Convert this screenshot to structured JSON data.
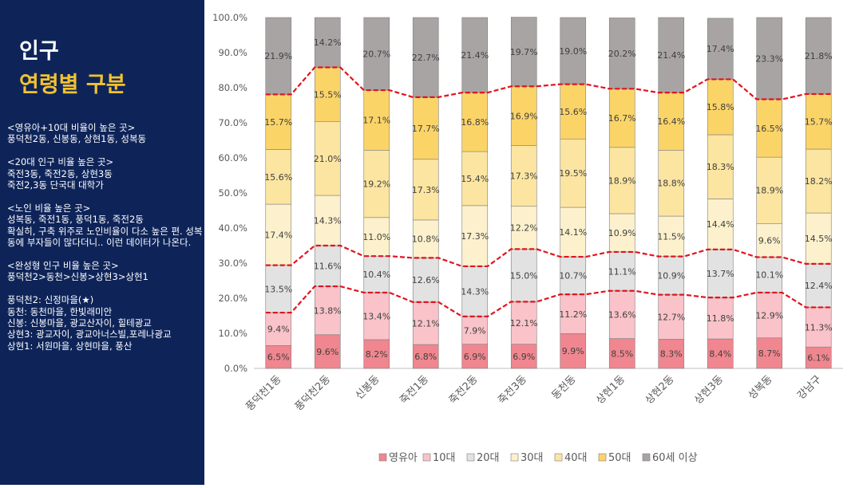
{
  "sidebar": {
    "title_line1": "인구",
    "title_line2": "연령별 구분",
    "notes": "<영유아+10대 비율이 높은 곳>\n풍덕천2동, 신봉동, 상현1동, 성복동\n\n<20대 인구 비율 높은 곳>\n죽전3동, 죽전2동, 상현3동\n죽전2,3동 단국대 대학가\n\n<노인 비율 높은 곳>\n성복동, 죽전1동, 풍덕1동, 죽전2동\n확실히, 구축 위주로 노인비율이 다소 높은 편. 성복동에 부자들이 많다더니.. 이런 데이터가 나온다.\n\n<완성형 인구 비율 높은 곳>\n풍덕천2>동천>신봉>상현3>상현1\n\n풍덕천2: 신정마을(★)\n동천: 동천마을, 한빛래미안\n신봉: 신봉마을, 광교산자이, 힐테광교\n상현3: 광교자이, 광교아너스빌,포레나광교\n상현1: 서원마을, 상현마을, 풍산"
  },
  "chart_data": {
    "type": "bar",
    "stacked": true,
    "normalized": true,
    "categories": [
      "풍덕천1동",
      "풍덕천2동",
      "신봉동",
      "죽전1동",
      "죽전2동",
      "죽전3동",
      "동천동",
      "상현1동",
      "상현2동",
      "상현3동",
      "성복동",
      "강남구"
    ],
    "series": [
      {
        "name": "영유아",
        "color": "#f0868f",
        "values": [
          6.5,
          9.6,
          8.2,
          6.8,
          6.9,
          6.9,
          9.9,
          8.5,
          8.3,
          8.4,
          8.7,
          6.1
        ]
      },
      {
        "name": "10대",
        "color": "#f9c3c9",
        "values": [
          9.4,
          13.8,
          13.4,
          12.1,
          7.9,
          12.1,
          11.2,
          13.6,
          12.7,
          11.8,
          12.9,
          11.3
        ]
      },
      {
        "name": "20대",
        "color": "#e2e2e2",
        "values": [
          13.5,
          11.6,
          10.4,
          12.6,
          14.3,
          15.0,
          10.7,
          11.1,
          10.9,
          13.7,
          10.1,
          12.4
        ]
      },
      {
        "name": "30대",
        "color": "#fcf1cc",
        "values": [
          17.4,
          14.3,
          11.0,
          10.8,
          17.3,
          12.2,
          14.1,
          10.9,
          11.5,
          14.4,
          9.6,
          14.5
        ]
      },
      {
        "name": "40대",
        "color": "#fbe5a1",
        "values": [
          15.6,
          21.0,
          19.2,
          17.3,
          15.4,
          17.3,
          19.5,
          18.9,
          18.8,
          18.3,
          18.9,
          18.2
        ]
      },
      {
        "name": "50대",
        "color": "#fbd468",
        "values": [
          15.7,
          15.5,
          17.1,
          17.7,
          16.8,
          16.9,
          15.6,
          16.7,
          16.4,
          15.8,
          16.5,
          15.7
        ]
      },
      {
        "name": "60세 이상",
        "color": "#a8a4a4",
        "values": [
          21.9,
          14.2,
          20.7,
          22.7,
          21.4,
          19.7,
          19.0,
          20.2,
          21.4,
          17.4,
          23.3,
          21.8
        ]
      }
    ],
    "ylim": [
      0,
      100
    ],
    "yticks": [
      "0.0%",
      "10.0%",
      "20.0%",
      "30.0%",
      "40.0%",
      "50.0%",
      "60.0%",
      "70.0%",
      "80.0%",
      "90.0%",
      "100.0%"
    ],
    "reference_lines": {
      "color": "#e0141e",
      "boundaries_after_series": [
        1,
        2,
        5
      ]
    },
    "legend": "bottom"
  }
}
